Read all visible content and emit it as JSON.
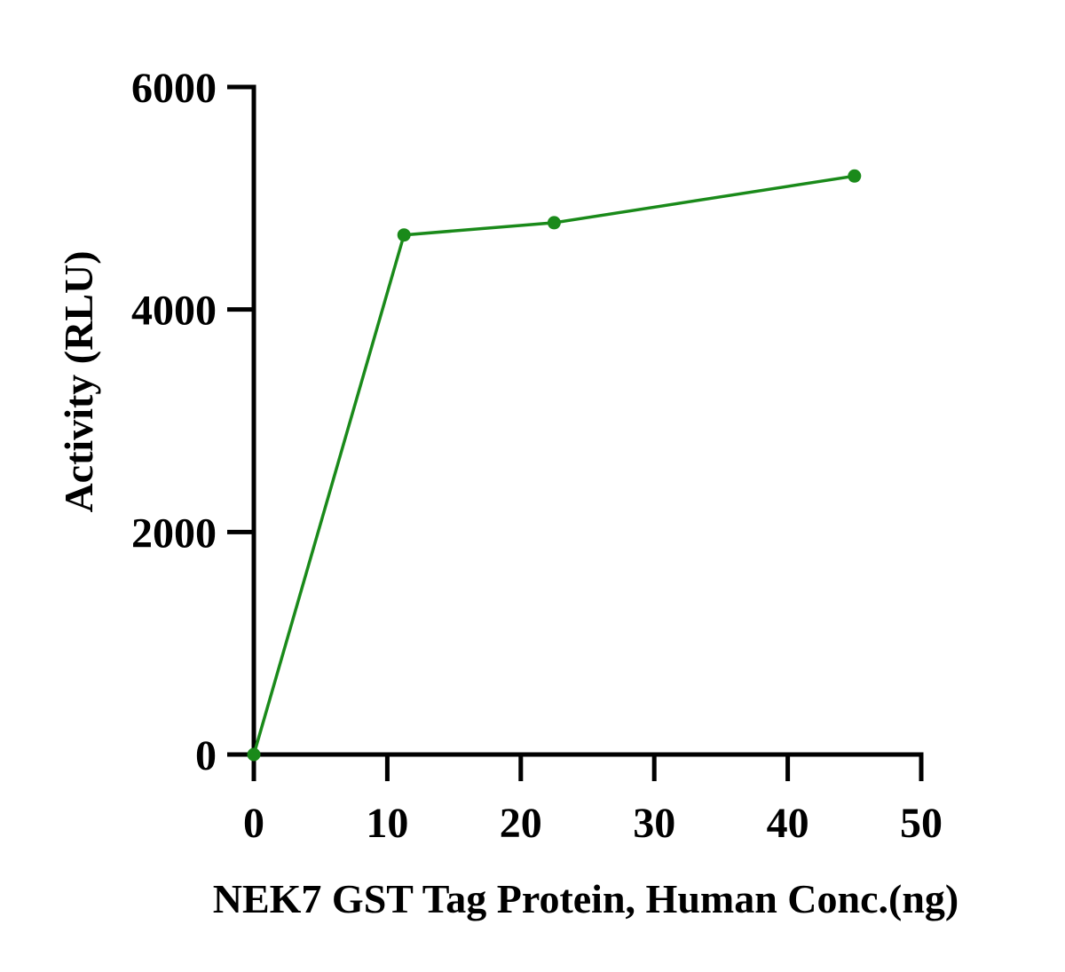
{
  "chart_data": {
    "type": "line",
    "title": "",
    "xlabel": "NEK7 GST Tag Protein, Human Conc.(ng)",
    "ylabel": "Activity (RLU)",
    "xlim": [
      0,
      50
    ],
    "ylim": [
      0,
      6000
    ],
    "x_ticks": [
      0,
      10,
      20,
      30,
      40,
      50
    ],
    "y_ticks": [
      0,
      2000,
      4000,
      6000
    ],
    "x_tick_labels": [
      "0",
      "10",
      "20",
      "30",
      "40",
      "50"
    ],
    "y_tick_labels": [
      "0",
      "2000",
      "4000",
      "6000"
    ],
    "grid": false,
    "legend": "none",
    "series": [
      {
        "color": "#1a8a1a",
        "x": [
          0,
          11.25,
          22.5,
          45
        ],
        "y": [
          0,
          4670,
          4780,
          5200
        ]
      }
    ]
  }
}
